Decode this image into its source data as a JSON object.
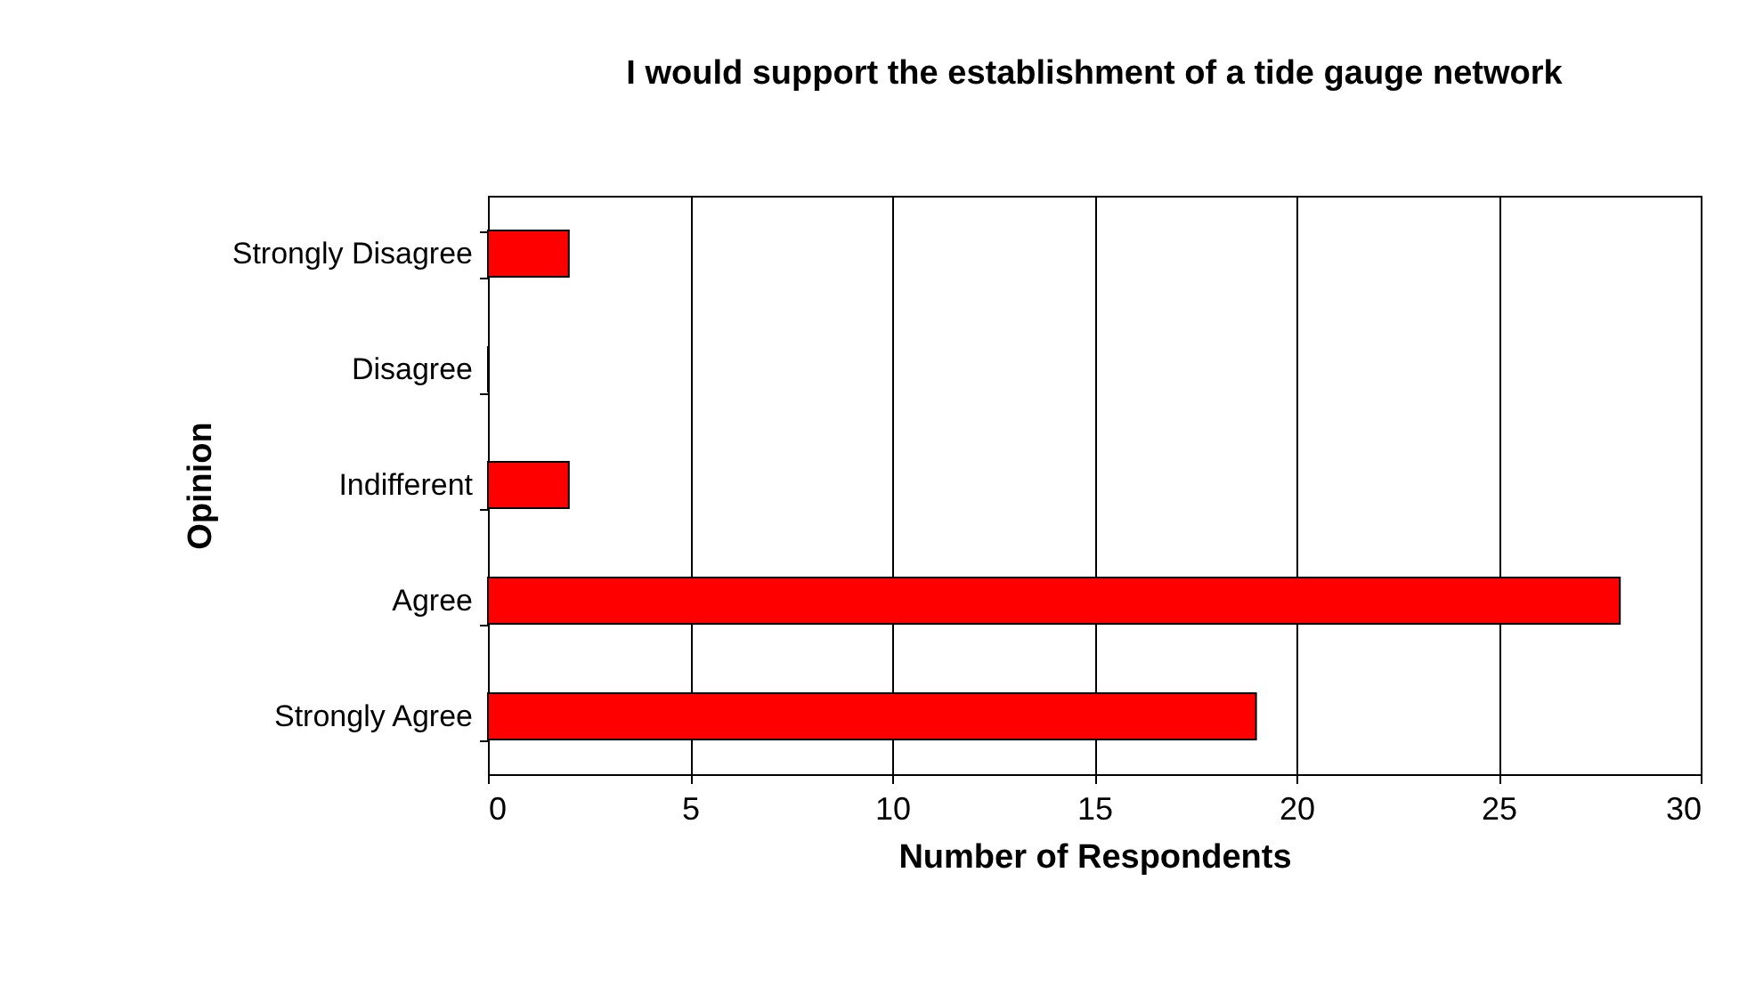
{
  "chart_data": {
    "type": "bar",
    "orientation": "horizontal",
    "title": "I would support the establishment of a tide gauge network",
    "xlabel": "Number of Respondents",
    "ylabel": "Opinion",
    "categories": [
      "Strongly Disagree",
      "Disagree",
      "Indifferent",
      "Agree",
      "Strongly Agree"
    ],
    "values": [
      2,
      0,
      2,
      28,
      19
    ],
    "color": "#ff0000",
    "xlim": [
      0,
      30
    ],
    "xticks": [
      0,
      5,
      10,
      15,
      20,
      25,
      30
    ],
    "grid": "x"
  }
}
